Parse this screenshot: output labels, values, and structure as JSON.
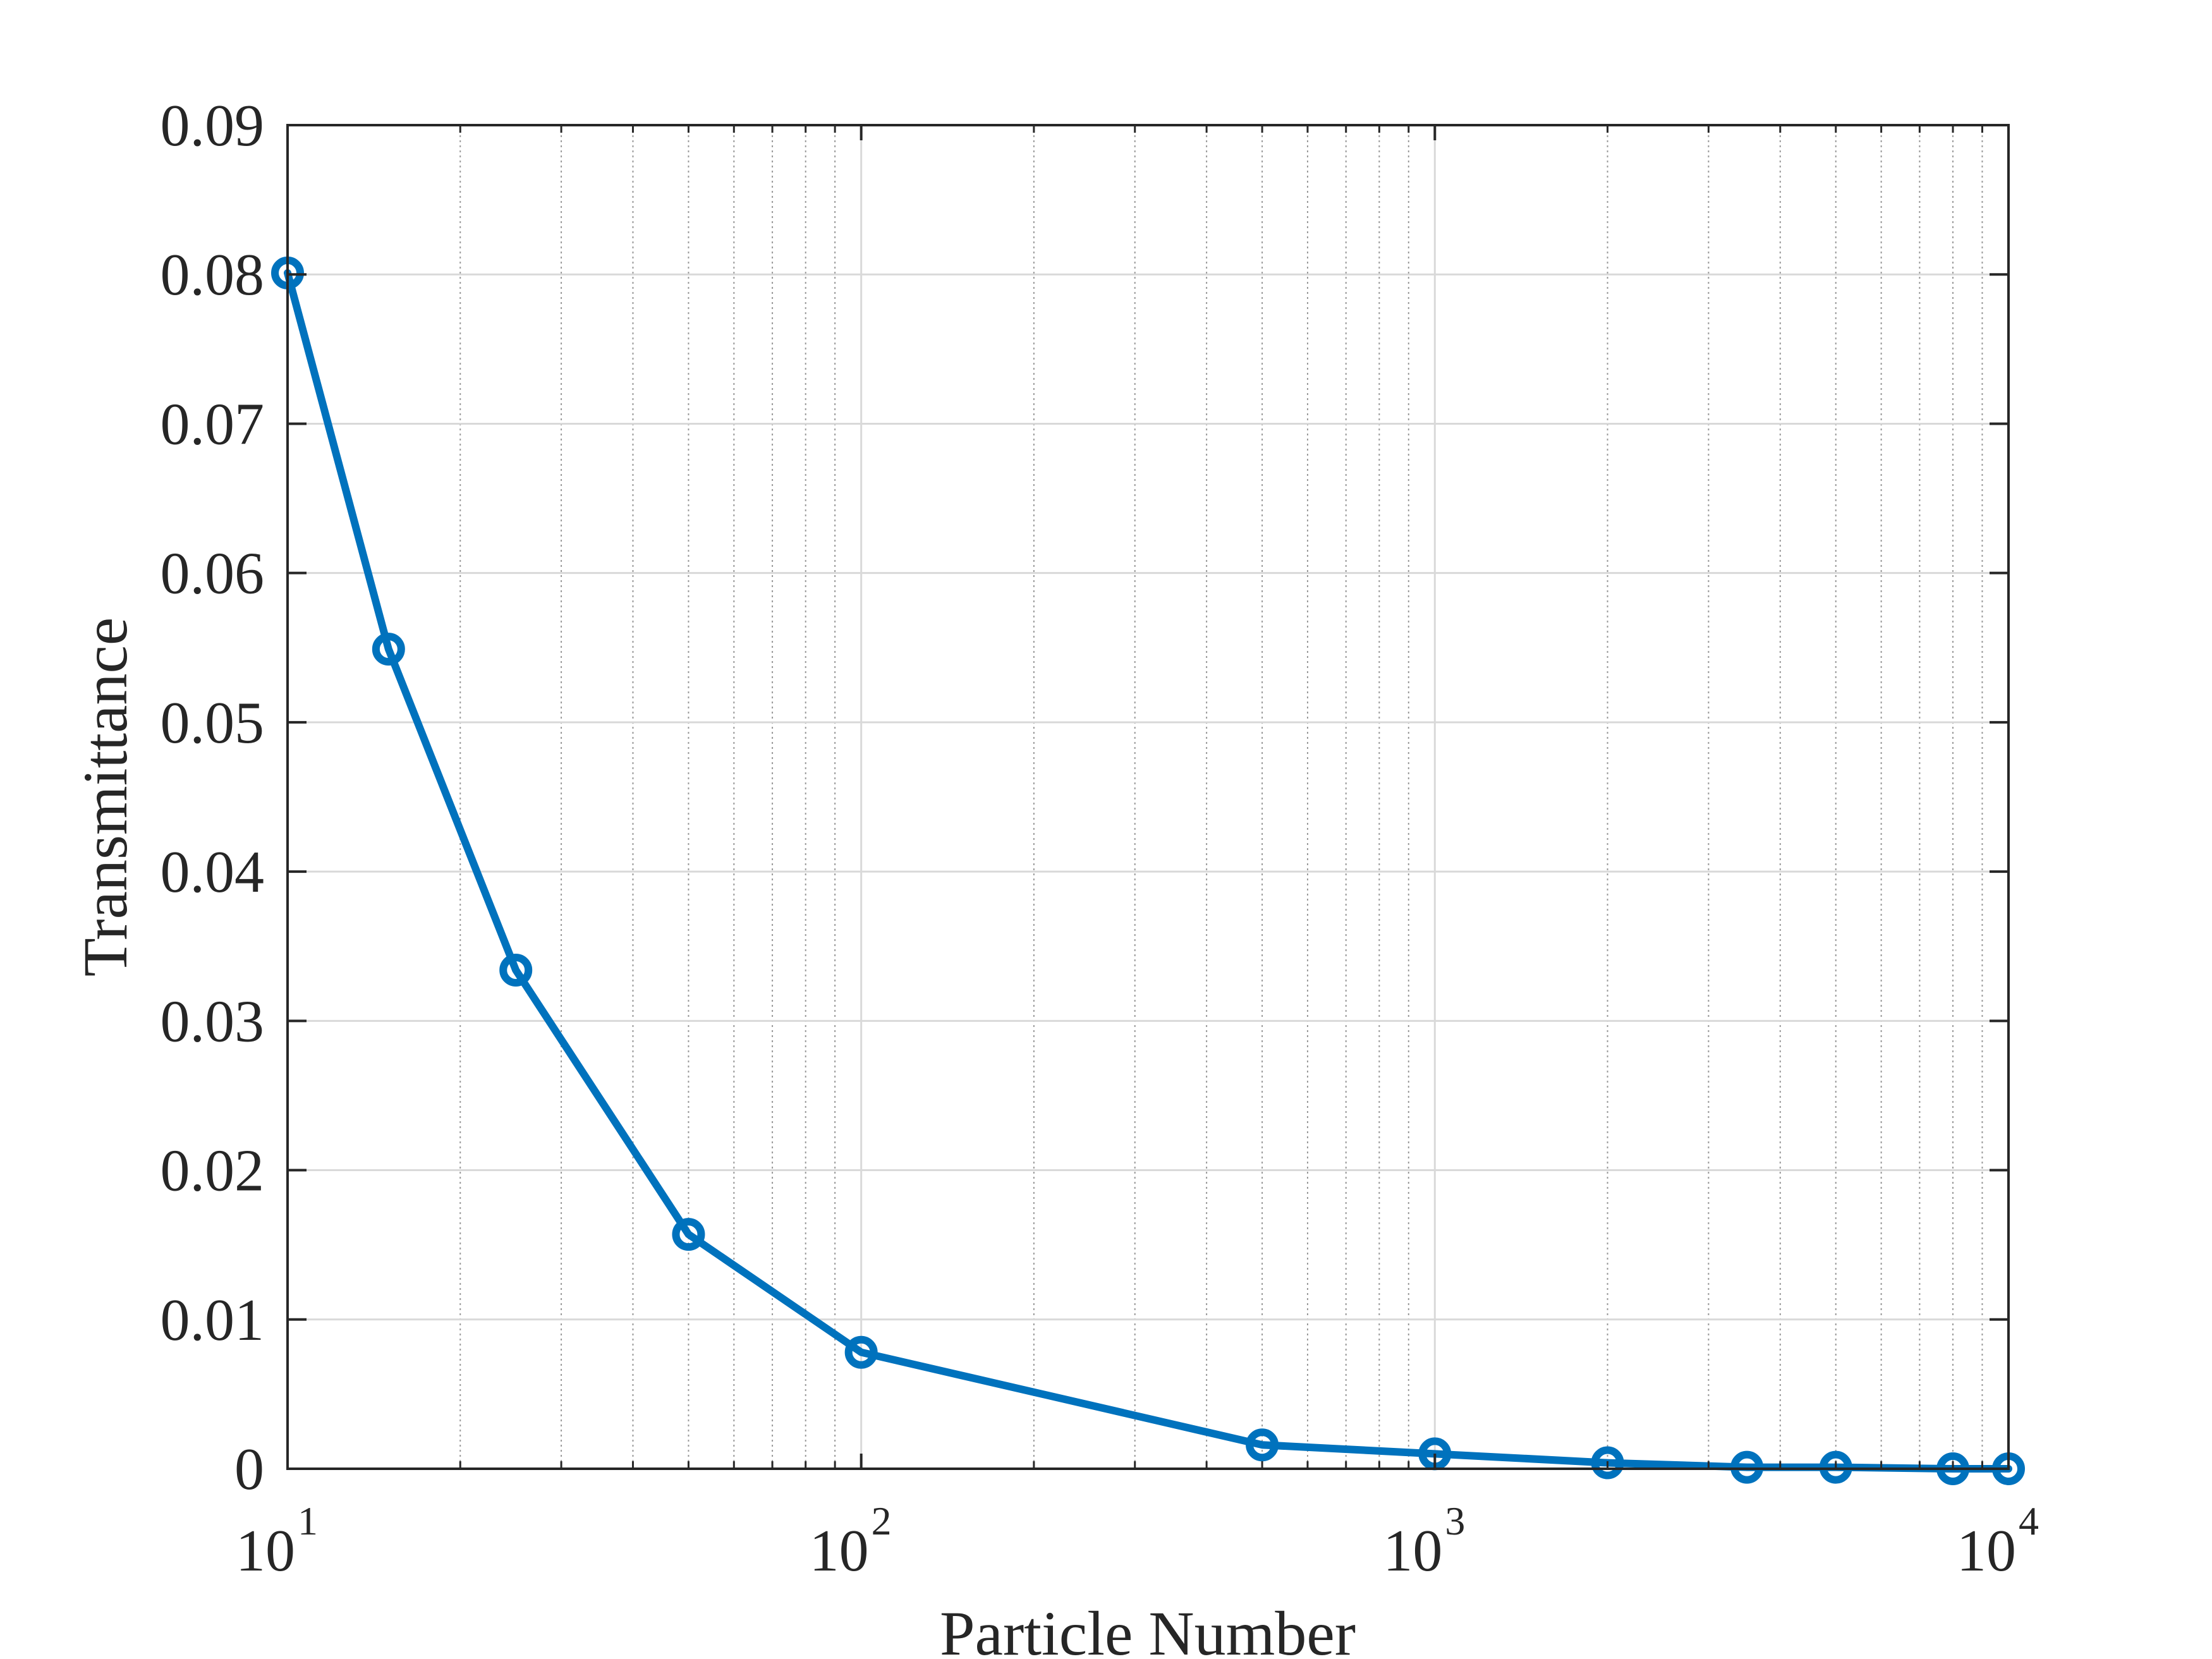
{
  "chart_data": {
    "type": "line",
    "title": "",
    "xlabel": "Particle Number",
    "ylabel": "Transmittance",
    "xscale": "log",
    "xlim": [
      10,
      10000
    ],
    "ylim": [
      0,
      0.09
    ],
    "grid": true,
    "minor_grid": true,
    "x_ticks": [
      {
        "value": 10,
        "base": "10",
        "exp": "1"
      },
      {
        "value": 100,
        "base": "10",
        "exp": "2"
      },
      {
        "value": 1000,
        "base": "10",
        "exp": "3"
      },
      {
        "value": 10000,
        "base": "10",
        "exp": "4"
      }
    ],
    "y_ticks": [
      {
        "value": 0,
        "label": "0"
      },
      {
        "value": 0.01,
        "label": "0.01"
      },
      {
        "value": 0.02,
        "label": "0.02"
      },
      {
        "value": 0.03,
        "label": "0.03"
      },
      {
        "value": 0.04,
        "label": "0.04"
      },
      {
        "value": 0.05,
        "label": "0.05"
      },
      {
        "value": 0.06,
        "label": "0.06"
      },
      {
        "value": 0.07,
        "label": "0.07"
      },
      {
        "value": 0.08,
        "label": "0.08"
      },
      {
        "value": 0.09,
        "label": "0.09"
      }
    ],
    "series": [
      {
        "color": "#0072BD",
        "marker": "circle",
        "x": [
          10,
          15,
          25,
          50,
          100,
          500,
          1000,
          2000,
          3500,
          5000,
          8000,
          10000
        ],
        "y": [
          0.0801,
          0.0549,
          0.0334,
          0.0157,
          0.0078,
          0.0016,
          0.001,
          0.0004,
          0.0001,
          0.0001,
          0.0,
          0.0
        ]
      }
    ]
  }
}
